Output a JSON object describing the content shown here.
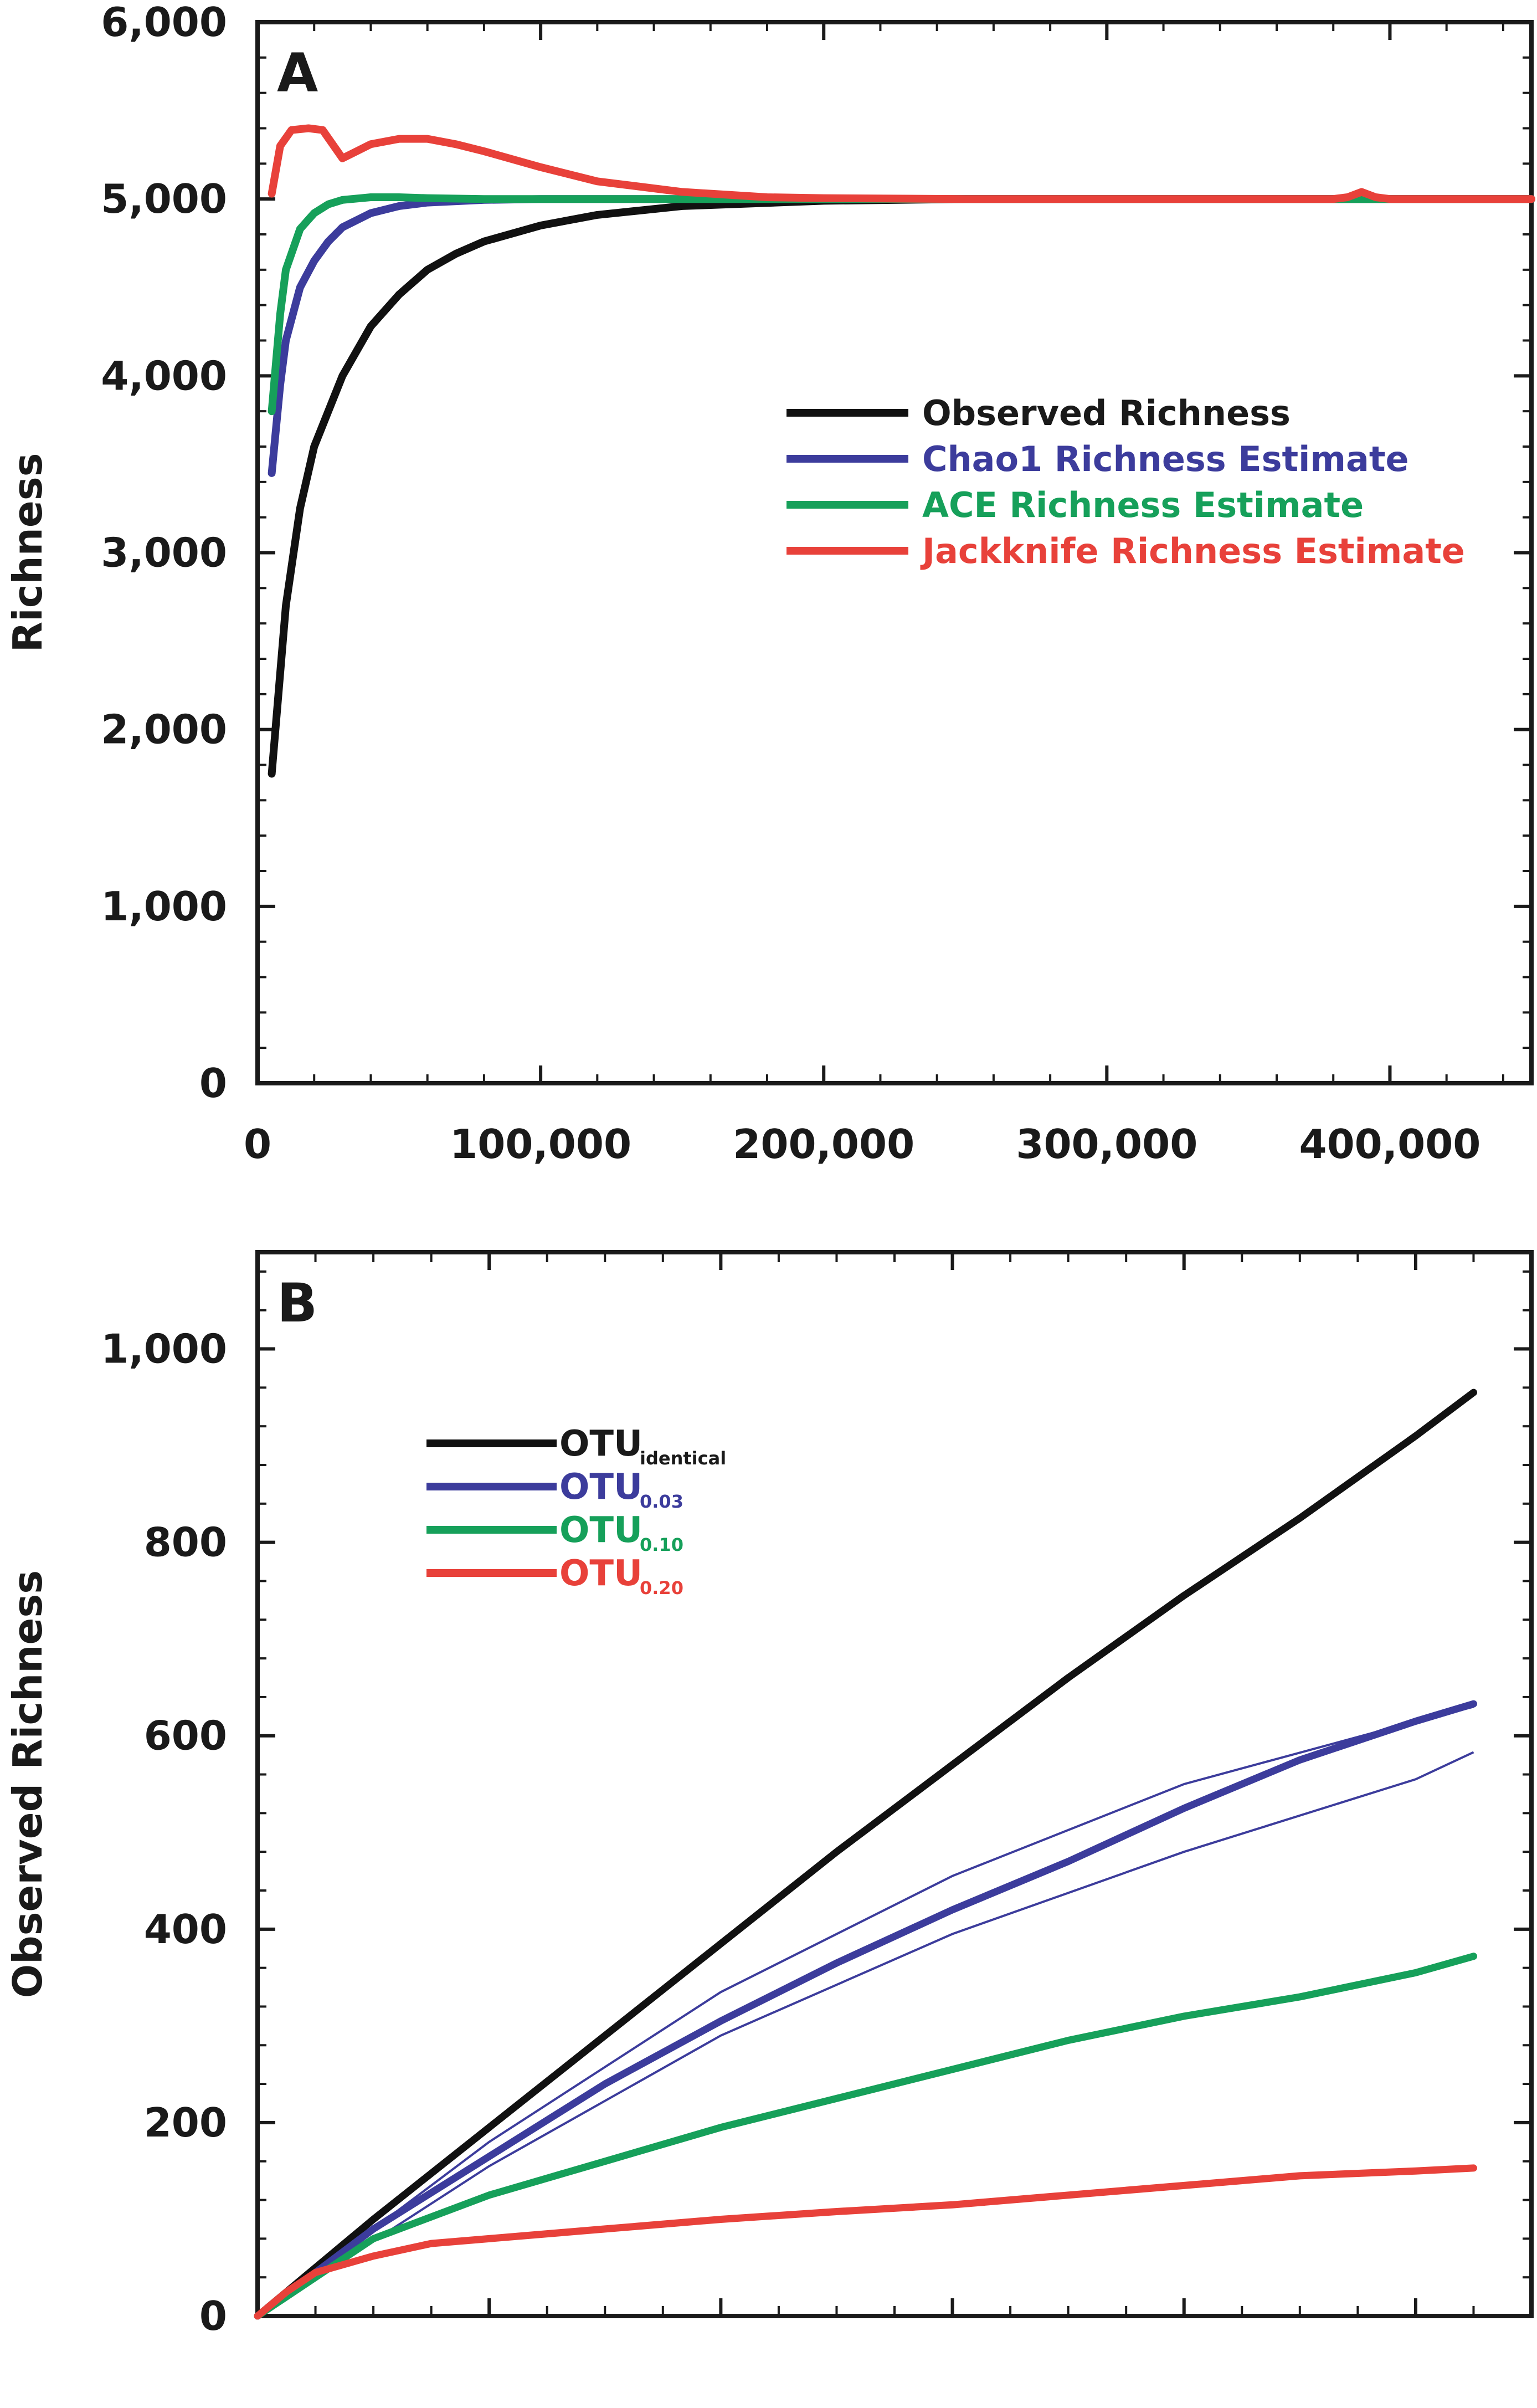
{
  "chart_data": [
    {
      "type": "line",
      "panel_label": "A",
      "title": "",
      "xlabel": "",
      "ylabel": "Richness",
      "xlim": [
        0,
        450000
      ],
      "ylim": [
        0,
        6000
      ],
      "x_ticks": [
        0,
        100000,
        200000,
        300000,
        400000
      ],
      "x_tick_labels": [
        "0",
        "100,000",
        "200,000",
        "300,000",
        "400,000"
      ],
      "y_ticks": [
        0,
        1000,
        2000,
        3000,
        4000,
        5000,
        6000
      ],
      "y_tick_labels": [
        "0",
        "1,000",
        "2,000",
        "3,000",
        "4,000",
        "5,000",
        "6,000"
      ],
      "legend_position": "right",
      "series": [
        {
          "name": "Observed Richness",
          "color": "#111111",
          "x": [
            5000,
            10000,
            15000,
            20000,
            30000,
            40000,
            50000,
            60000,
            70000,
            80000,
            100000,
            120000,
            150000,
            200000,
            250000,
            300000,
            350000,
            400000,
            450000
          ],
          "y": [
            1750,
            2700,
            3250,
            3600,
            4000,
            4280,
            4460,
            4600,
            4690,
            4760,
            4850,
            4910,
            4960,
            4990,
            5000,
            5000,
            5000,
            5000,
            5000
          ]
        },
        {
          "name": "Chao1 Richness Estimate",
          "color": "#3c3c9c",
          "x": [
            5000,
            8000,
            10000,
            15000,
            20000,
            25000,
            30000,
            40000,
            50000,
            60000,
            80000,
            100000,
            150000,
            200000,
            300000,
            400000,
            450000
          ],
          "y": [
            3450,
            3950,
            4200,
            4500,
            4650,
            4760,
            4840,
            4920,
            4960,
            4980,
            4995,
            5000,
            5000,
            5000,
            5000,
            5000,
            5000
          ]
        },
        {
          "name": "ACE Richness Estimate",
          "color": "#16a05a",
          "x": [
            5000,
            8000,
            10000,
            15000,
            20000,
            25000,
            30000,
            40000,
            50000,
            60000,
            80000,
            100000,
            150000,
            200000,
            300000,
            400000,
            450000
          ],
          "y": [
            3800,
            4350,
            4600,
            4830,
            4920,
            4970,
            4995,
            5010,
            5010,
            5005,
            5000,
            5000,
            5000,
            5000,
            5000,
            5000,
            5000
          ]
        },
        {
          "name": "Jackknife Richness Estimate",
          "color": "#e8413a",
          "x": [
            5000,
            8000,
            12000,
            18000,
            23000,
            30000,
            35000,
            40000,
            50000,
            60000,
            70000,
            80000,
            100000,
            120000,
            150000,
            180000,
            200000,
            250000,
            300000,
            380000,
            385000,
            390000,
            395000,
            400000,
            450000
          ],
          "y": [
            5030,
            5300,
            5390,
            5400,
            5390,
            5230,
            5270,
            5310,
            5340,
            5340,
            5310,
            5270,
            5180,
            5100,
            5040,
            5010,
            5005,
            5000,
            5000,
            5000,
            5010,
            5040,
            5010,
            5000,
            5000
          ]
        }
      ]
    },
    {
      "type": "line",
      "panel_label": "B",
      "title": "",
      "xlabel": "",
      "ylabel": "Observed Richness",
      "xlim": [
        0,
        1100
      ],
      "ylim": [
        0,
        1100
      ],
      "y_ticks": [
        0,
        200,
        400,
        600,
        800,
        1000
      ],
      "y_tick_labels": [
        "0",
        "200",
        "400",
        "600",
        "800",
        "1,000"
      ],
      "legend_position": "top-left",
      "series": [
        {
          "name": "OTU",
          "subscript": "identical",
          "color": "#111111",
          "x": [
            0,
            50,
            100,
            200,
            300,
            400,
            500,
            600,
            700,
            800,
            900,
            1000,
            1050
          ],
          "y": [
            0,
            50,
            100,
            195,
            290,
            385,
            480,
            570,
            660,
            745,
            825,
            910,
            955
          ]
        },
        {
          "name": "OTU",
          "subscript": "0.03",
          "color": "#3c3c9c",
          "x": [
            0,
            50,
            100,
            200,
            300,
            400,
            500,
            600,
            700,
            800,
            900,
            1000,
            1050
          ],
          "y": [
            0,
            45,
            90,
            165,
            240,
            305,
            365,
            420,
            470,
            525,
            575,
            615,
            633
          ]
        },
        {
          "name": "OTU",
          "subscript": "0.10",
          "color": "#16a05a",
          "x": [
            0,
            50,
            100,
            200,
            300,
            400,
            500,
            600,
            700,
            800,
            900,
            1000,
            1050
          ],
          "y": [
            0,
            40,
            80,
            125,
            160,
            195,
            225,
            255,
            285,
            310,
            330,
            355,
            372
          ]
        },
        {
          "name": "OTU",
          "subscript": "0.20",
          "color": "#e8413a",
          "x": [
            0,
            25,
            50,
            100,
            150,
            200,
            300,
            400,
            500,
            600,
            700,
            800,
            900,
            1000,
            1050
          ],
          "y": [
            0,
            25,
            45,
            62,
            75,
            80,
            90,
            100,
            108,
            115,
            125,
            135,
            145,
            150,
            153
          ]
        }
      ],
      "confidence_bounds_0.03": {
        "upper": {
          "x": [
            0,
            200,
            400,
            600,
            800,
            1000,
            1050
          ],
          "y": [
            0,
            180,
            335,
            455,
            550,
            615,
            630
          ]
        },
        "lower": {
          "x": [
            0,
            200,
            400,
            600,
            800,
            1000,
            1050
          ],
          "y": [
            0,
            155,
            290,
            395,
            480,
            555,
            583
          ]
        }
      }
    }
  ]
}
